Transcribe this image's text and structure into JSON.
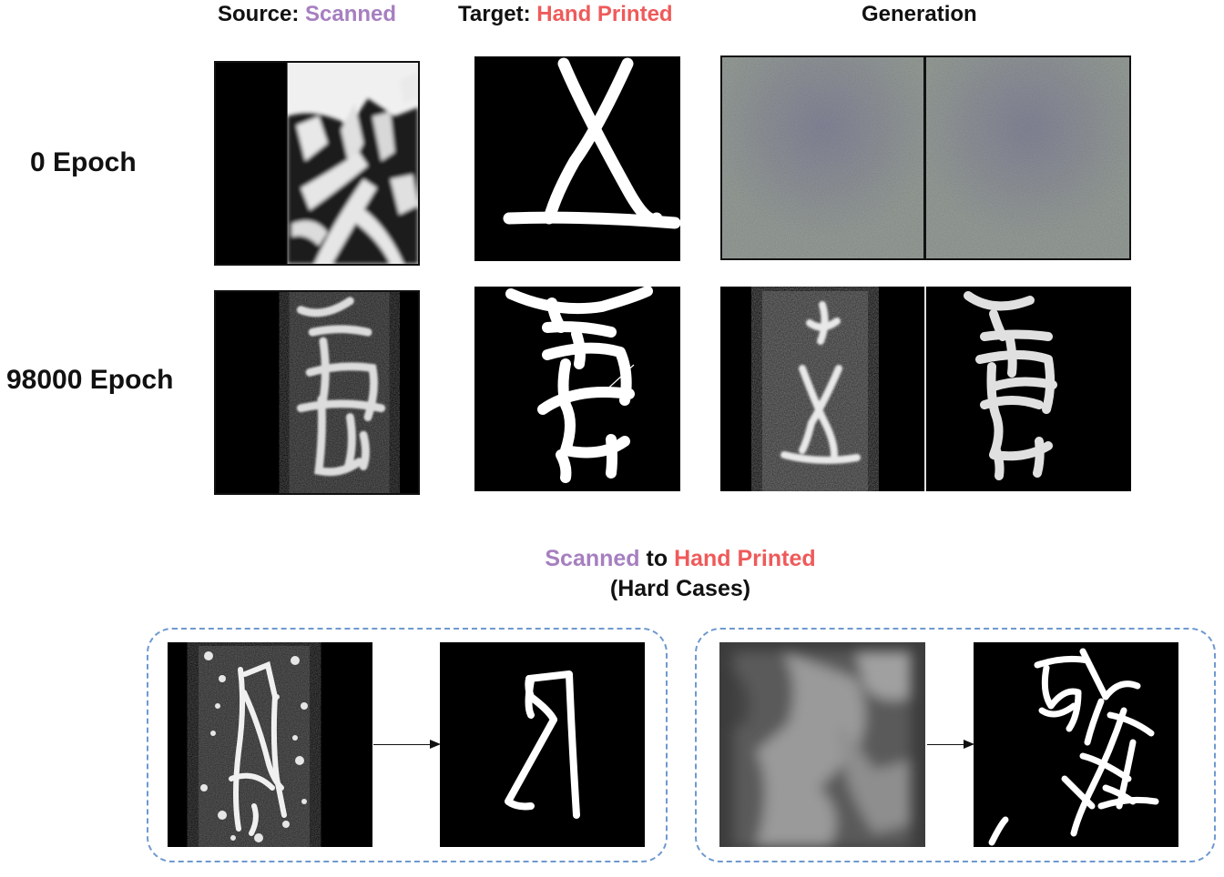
{
  "colors": {
    "scanned": "#a67fc0",
    "hand_printed": "#ef5a5a",
    "dashed_border": "#6f99cf"
  },
  "headers": {
    "source_prefix": "Source: ",
    "source_highlight": "Scanned",
    "target_prefix": "Target: ",
    "target_highlight": "Hand Printed",
    "generation": "Generation"
  },
  "rows": [
    {
      "label": "0 Epoch"
    },
    {
      "label": "98000 Epoch"
    }
  ],
  "hard_cases": {
    "title_scanned": "Scanned",
    "title_to": " to ",
    "title_hand_printed": "Hand Printed",
    "subtitle": "(Hard Cases)"
  }
}
